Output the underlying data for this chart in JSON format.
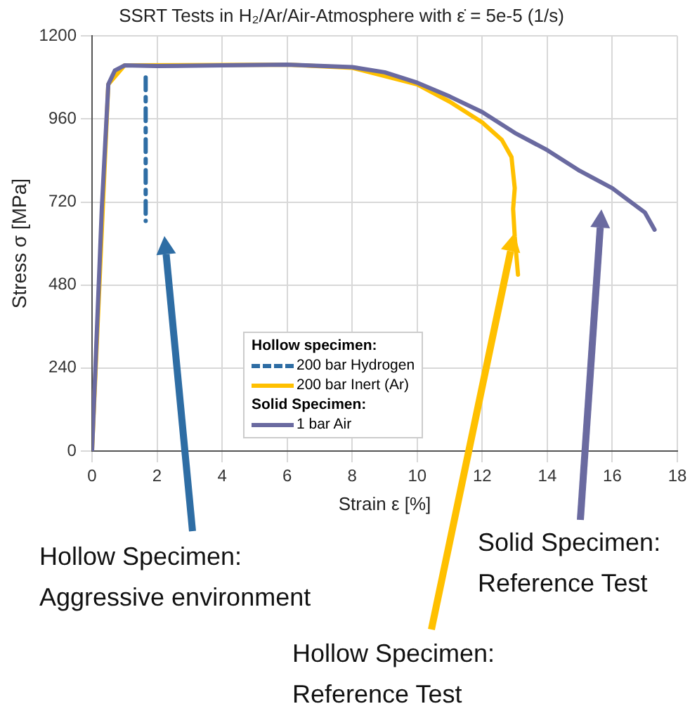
{
  "chart_data": {
    "type": "line",
    "title": "SSRT Tests in H₂/Ar/Air-Atmosphere with ε̇ = 5e-5 (1/s)",
    "xlabel": "Strain ε [%]",
    "ylabel": "Stress σ [MPa]",
    "xlim": [
      0,
      18
    ],
    "xticks": [
      0,
      2,
      4,
      6,
      8,
      10,
      12,
      14,
      16,
      18
    ],
    "ylim": [
      0,
      1200
    ],
    "yticks": [
      0,
      240,
      480,
      720,
      960,
      1200
    ],
    "grid": true,
    "legend": "bottom",
    "legend_title": "Hollow specimen:",
    "marker": "none",
    "series": [
      {
        "name": "200 bar Hydrogen",
        "color": "#2e6da4",
        "line_style": "dashdot",
        "x": [
          1.65,
          1.65
        ],
        "values": [
          1080,
          665
        ]
      },
      {
        "name": "200 bar Inert (Ar)",
        "color": "#ffc000",
        "line_style": "solid",
        "x": [
          0,
          0.5,
          1,
          6,
          8,
          10,
          11,
          12,
          12.6,
          12.9,
          13,
          12.95,
          13,
          13.1
        ],
        "values": [
          0,
          1060,
          1115,
          1117,
          1108,
          1060,
          1010,
          950,
          900,
          850,
          760,
          700,
          620,
          510
        ]
      },
      {
        "name": "1 bar Air",
        "color": "#6a6aa0",
        "line_style": "solid",
        "x": [
          0,
          0.3,
          0.5,
          0.7,
          1,
          2,
          4,
          6,
          8,
          9,
          10,
          11,
          12,
          13,
          14,
          15,
          16,
          17,
          17.3
        ],
        "values": [
          0,
          700,
          1060,
          1100,
          1115,
          1113,
          1115,
          1117,
          1110,
          1095,
          1065,
          1025,
          980,
          920,
          870,
          810,
          760,
          690,
          640
        ]
      }
    ],
    "annotations": [
      "Hollow Specimen:\nAggressive environment",
      "Hollow Specimen:\nReference Test",
      "Solid Specimen:\nReference Test",
      "Solid Specimen:"
    ]
  }
}
